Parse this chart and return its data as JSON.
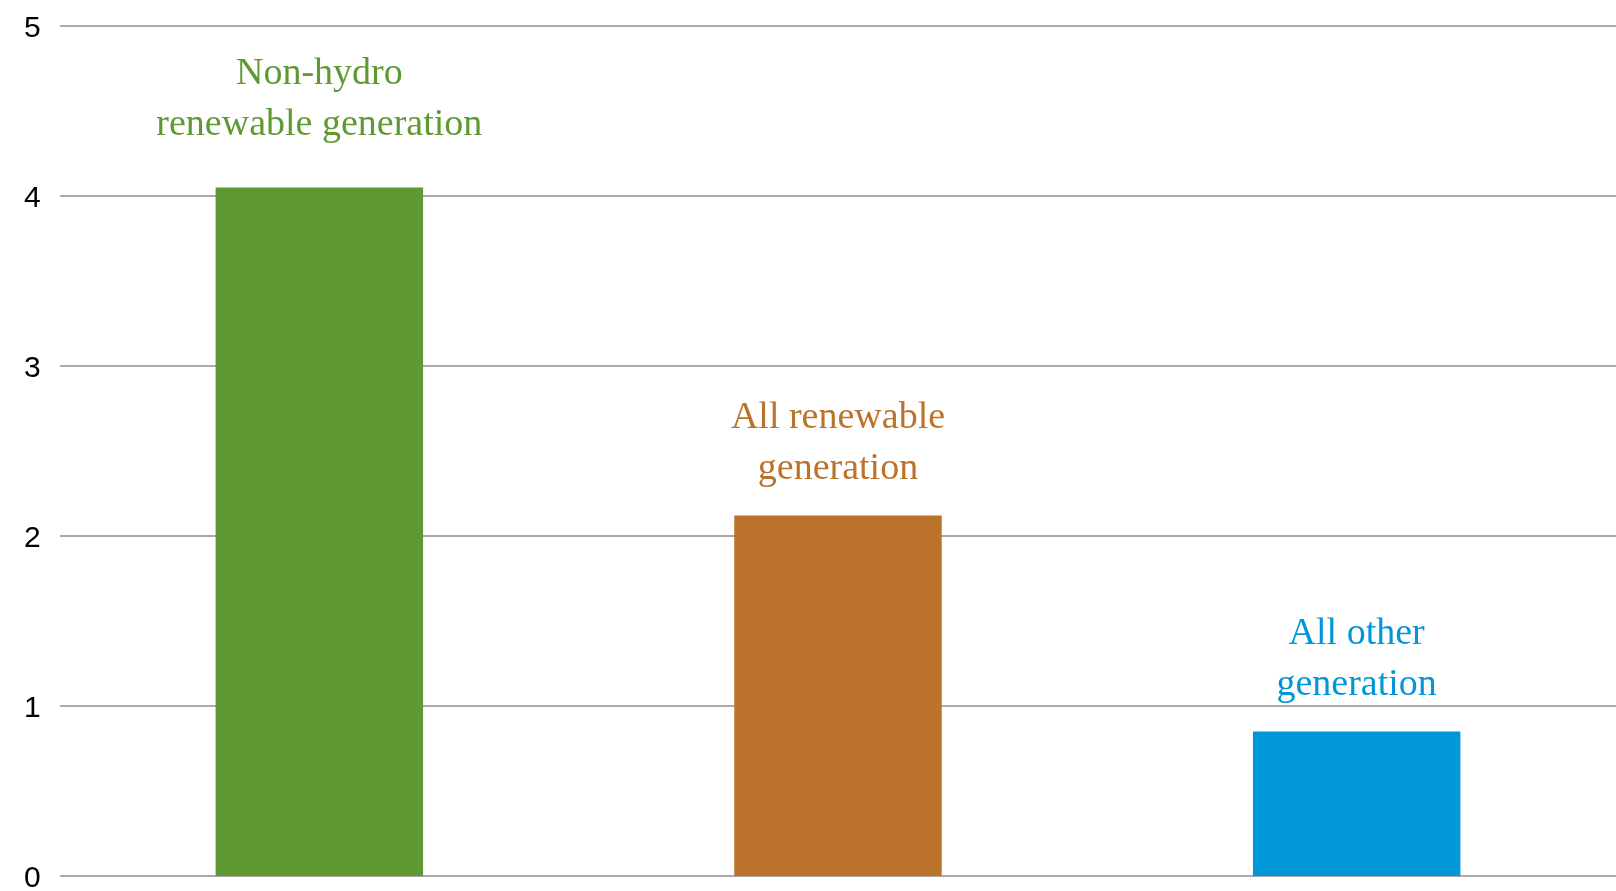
{
  "chart_data": {
    "type": "bar",
    "categories": [
      "Non-hydro\nrenewable generation",
      "All renewable\ngeneration",
      "All other\ngeneration"
    ],
    "values": [
      4.05,
      2.12,
      0.85
    ],
    "colors": [
      "#5f9932",
      "#bb722a",
      "#0097d9"
    ],
    "ylim": [
      0,
      5
    ],
    "yticks": [
      0,
      1,
      2,
      3,
      4,
      5
    ],
    "grid": "y"
  }
}
